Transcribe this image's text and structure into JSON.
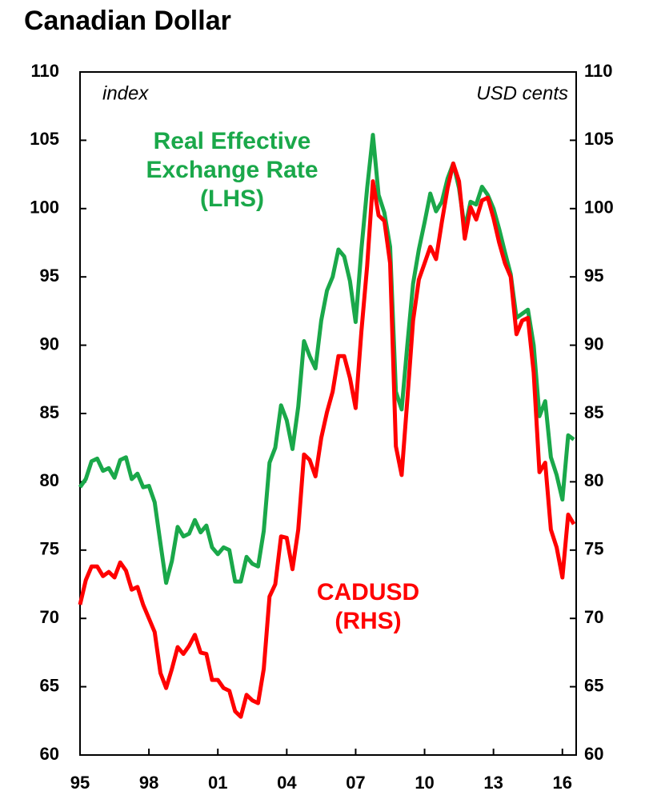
{
  "chart_data": {
    "type": "line",
    "title": "Canadian Dollar",
    "y_unit": "index",
    "y2_unit": "USD cents",
    "xlim": [
      1995,
      2016.6
    ],
    "xticks": [
      {
        "value": 1995,
        "label": "95"
      },
      {
        "value": 1998,
        "label": "98"
      },
      {
        "value": 2001,
        "label": "01"
      },
      {
        "value": 2004,
        "label": "04"
      },
      {
        "value": 2007,
        "label": "07"
      },
      {
        "value": 2010,
        "label": "10"
      },
      {
        "value": 2013,
        "label": "13"
      },
      {
        "value": 2016,
        "label": "16"
      }
    ],
    "ylim": [
      60,
      110
    ],
    "yticks": [
      60,
      65,
      70,
      75,
      80,
      85,
      90,
      95,
      100,
      105,
      110
    ],
    "y2lim": [
      60,
      110
    ],
    "y2ticks": [
      60,
      65,
      70,
      75,
      80,
      85,
      90,
      95,
      100,
      105,
      110
    ],
    "x": [
      1995,
      1995.25,
      1995.5,
      1995.75,
      1996,
      1996.25,
      1996.5,
      1996.75,
      1997,
      1997.25,
      1997.5,
      1997.75,
      1998,
      1998.25,
      1998.5,
      1998.75,
      1999,
      1999.25,
      1999.5,
      1999.75,
      2000,
      2000.25,
      2000.5,
      2000.75,
      2001,
      2001.25,
      2001.5,
      2001.75,
      2002,
      2002.25,
      2002.5,
      2002.75,
      2003,
      2003.25,
      2003.5,
      2003.75,
      2004,
      2004.25,
      2004.5,
      2004.75,
      2005,
      2005.25,
      2005.5,
      2005.75,
      2006,
      2006.25,
      2006.5,
      2006.75,
      2007,
      2007.25,
      2007.5,
      2007.75,
      2008,
      2008.25,
      2008.5,
      2008.75,
      2009,
      2009.25,
      2009.5,
      2009.75,
      2010,
      2010.25,
      2010.5,
      2010.75,
      2011,
      2011.25,
      2011.5,
      2011.75,
      2012,
      2012.25,
      2012.5,
      2012.75,
      2013,
      2013.25,
      2013.5,
      2013.75,
      2014,
      2014.25,
      2014.5,
      2014.75,
      2015,
      2015.25,
      2015.5,
      2015.75,
      2016,
      2016.25,
      2016.5
    ],
    "series": [
      {
        "label": [
          "Real Effective",
          "Exchange Rate",
          "(LHS)"
        ],
        "color": "#1aa84a",
        "axis": "y",
        "values": [
          79.6,
          80.2,
          81.5,
          81.7,
          80.8,
          81.0,
          80.3,
          81.6,
          81.8,
          80.2,
          80.6,
          79.6,
          79.7,
          78.5,
          75.5,
          72.6,
          74.2,
          76.7,
          76.0,
          76.2,
          77.2,
          76.3,
          76.8,
          75.2,
          74.7,
          75.2,
          75.0,
          72.7,
          72.7,
          74.5,
          74.0,
          73.8,
          76.4,
          81.4,
          82.5,
          85.6,
          84.5,
          82.4,
          85.5,
          90.3,
          89.2,
          88.3,
          91.8,
          94.0,
          95.0,
          97.0,
          96.5,
          94.7,
          91.7,
          97.0,
          101.5,
          105.4,
          101.0,
          99.7,
          97.2,
          86.6,
          85.3,
          90.0,
          94.5,
          97.0,
          99.0,
          101.1,
          99.8,
          100.5,
          102.2,
          103.3,
          101.5,
          98.5,
          100.5,
          100.3,
          101.6,
          101.0,
          100.0,
          98.5,
          96.8,
          95.2,
          92.0,
          92.3,
          92.6,
          90.0,
          84.8,
          85.9,
          81.8,
          80.5,
          78.7,
          83.4,
          83.1
        ]
      },
      {
        "label": [
          "CADUSD",
          "(RHS)"
        ],
        "color": "#ff0000",
        "axis": "y2",
        "values": [
          71.0,
          72.8,
          73.8,
          73.8,
          73.1,
          73.4,
          73.0,
          74.1,
          73.5,
          72.1,
          72.3,
          71.0,
          70.0,
          69.0,
          66.0,
          64.9,
          66.3,
          67.9,
          67.4,
          68.0,
          68.8,
          67.5,
          67.4,
          65.5,
          65.5,
          64.9,
          64.7,
          63.2,
          62.8,
          64.4,
          64.0,
          63.8,
          66.3,
          71.6,
          72.5,
          76.0,
          75.9,
          73.6,
          76.5,
          82.0,
          81.6,
          80.4,
          83.2,
          85.1,
          86.6,
          89.2,
          89.2,
          87.6,
          85.4,
          91.0,
          95.8,
          102.0,
          99.5,
          99.1,
          96.0,
          82.6,
          80.5,
          86.0,
          91.8,
          94.8,
          96.0,
          97.2,
          96.3,
          99.0,
          101.5,
          103.3,
          102.0,
          97.8,
          100.1,
          99.2,
          100.6,
          100.8,
          99.3,
          97.5,
          96.0,
          95.0,
          90.8,
          91.8,
          92.0,
          88.0,
          80.7,
          81.4,
          76.5,
          75.2,
          73.0,
          77.6,
          76.9
        ]
      }
    ]
  }
}
